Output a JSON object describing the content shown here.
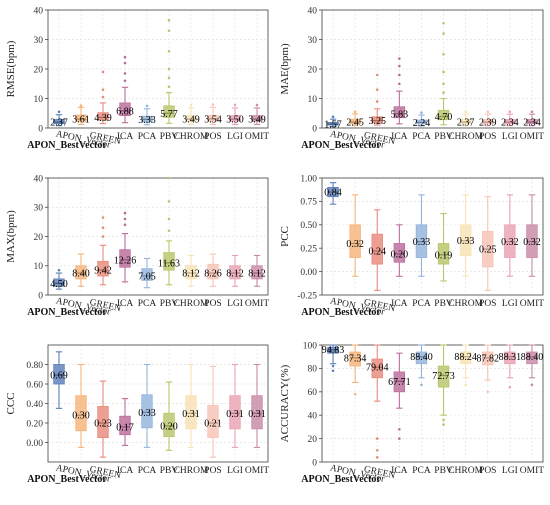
{
  "categories": [
    "APON_BestVector",
    "APON_Vector",
    "GREEN",
    "ICA",
    "PCA",
    "PBV",
    "CHROM",
    "POS",
    "LGI",
    "OMIT"
  ],
  "colors": [
    "#5b7fb8",
    "#f5b37a",
    "#e88a7a",
    "#bb6d9b",
    "#93b3dc",
    "#b9c568",
    "#f8e2b4",
    "#f7c3b6",
    "#eaa2b3",
    "#c88aa6"
  ],
  "chart_data": [
    {
      "type": "box",
      "title": "",
      "ylabel": "RMSE(bpm)",
      "ylim": [
        0,
        40
      ],
      "yticks": [
        0,
        10,
        20,
        30,
        40
      ],
      "grid": true,
      "means": [
        "2.37",
        "3.61",
        "4.39",
        "6.88",
        "3.33",
        "5.77",
        "3.49",
        "3.54",
        "3.50",
        "3.49"
      ],
      "boxes": [
        {
          "whisker_low": 0.8,
          "q1": 1.5,
          "median": 2.0,
          "q3": 2.9,
          "whisker_high": 4.5,
          "outliers": [
            5.5
          ]
        },
        {
          "whisker_low": 1.2,
          "q1": 2.3,
          "median": 3.0,
          "q3": 4.4,
          "whisker_high": 7.0,
          "outliers": [
            7.6
          ]
        },
        {
          "whisker_low": 1.5,
          "q1": 2.7,
          "median": 3.6,
          "q3": 5.2,
          "whisker_high": 8.5,
          "outliers": [
            10.5,
            13.0,
            19.0
          ]
        },
        {
          "whisker_low": 1.8,
          "q1": 4.2,
          "median": 5.8,
          "q3": 8.5,
          "whisker_high": 13.8,
          "outliers": [
            16.0,
            18.5,
            22.0,
            24.0
          ]
        },
        {
          "whisker_low": 1.1,
          "q1": 2.1,
          "median": 2.9,
          "q3": 4.0,
          "whisker_high": 6.5,
          "outliers": [
            7.5
          ]
        },
        {
          "whisker_low": 1.6,
          "q1": 3.6,
          "median": 5.0,
          "q3": 7.5,
          "whisker_high": 12.0,
          "outliers": [
            14.0,
            17.0,
            20.0,
            26.0,
            33.0,
            36.5
          ]
        },
        {
          "whisker_low": 1.2,
          "q1": 2.3,
          "median": 3.0,
          "q3": 4.2,
          "whisker_high": 6.8,
          "outliers": [
            7.8
          ]
        },
        {
          "whisker_low": 1.2,
          "q1": 2.4,
          "median": 3.1,
          "q3": 4.3,
          "whisker_high": 7.0,
          "outliers": [
            7.9
          ]
        },
        {
          "whisker_low": 1.2,
          "q1": 2.3,
          "median": 3.0,
          "q3": 4.2,
          "whisker_high": 6.8,
          "outliers": [
            7.8
          ]
        },
        {
          "whisker_low": 1.2,
          "q1": 2.3,
          "median": 3.0,
          "q3": 4.2,
          "whisker_high": 6.8,
          "outliers": [
            7.8
          ]
        }
      ]
    },
    {
      "type": "box",
      "title": "",
      "ylabel": "MAE(bpm)",
      "ylim": [
        0,
        40
      ],
      "yticks": [
        0,
        10,
        20,
        30,
        40
      ],
      "grid": true,
      "means": [
        "1.57",
        "2.45",
        "3.25",
        "5.83",
        "2.24",
        "4.70",
        "2.37",
        "2.39",
        "2.34",
        "2.34"
      ],
      "boxes": [
        {
          "whisker_low": 0.5,
          "q1": 1.0,
          "median": 1.3,
          "q3": 1.9,
          "whisker_high": 3.0,
          "outliers": [
            3.8
          ]
        },
        {
          "whisker_low": 0.8,
          "q1": 1.5,
          "median": 2.0,
          "q3": 3.0,
          "whisker_high": 4.8,
          "outliers": [
            5.5
          ]
        },
        {
          "whisker_low": 1.0,
          "q1": 1.8,
          "median": 2.5,
          "q3": 3.8,
          "whisker_high": 6.5,
          "outliers": [
            9.0,
            13.0,
            18.0
          ]
        },
        {
          "whisker_low": 1.4,
          "q1": 3.5,
          "median": 4.8,
          "q3": 7.2,
          "whisker_high": 12.5,
          "outliers": [
            15.0,
            18.0,
            21.0,
            23.5
          ]
        },
        {
          "whisker_low": 0.7,
          "q1": 1.4,
          "median": 1.9,
          "q3": 2.7,
          "whisker_high": 4.4,
          "outliers": [
            5.2
          ]
        },
        {
          "whisker_low": 1.1,
          "q1": 2.8,
          "median": 3.9,
          "q3": 6.0,
          "whisker_high": 10.0,
          "outliers": [
            12.0,
            15.0,
            19.0,
            25.0,
            32.0,
            35.5
          ]
        },
        {
          "whisker_low": 0.8,
          "q1": 1.5,
          "median": 2.0,
          "q3": 2.9,
          "whisker_high": 4.7,
          "outliers": [
            5.5
          ]
        },
        {
          "whisker_low": 0.8,
          "q1": 1.5,
          "median": 2.0,
          "q3": 2.9,
          "whisker_high": 4.7,
          "outliers": [
            5.5
          ]
        },
        {
          "whisker_low": 0.8,
          "q1": 1.5,
          "median": 2.0,
          "q3": 2.9,
          "whisker_high": 4.7,
          "outliers": [
            5.5
          ]
        },
        {
          "whisker_low": 0.8,
          "q1": 1.5,
          "median": 2.0,
          "q3": 2.9,
          "whisker_high": 4.7,
          "outliers": [
            5.5
          ]
        }
      ]
    },
    {
      "type": "box",
      "title": "",
      "ylabel": "MAX(bpm)",
      "ylim": [
        0,
        40
      ],
      "yticks": [
        0,
        10,
        20,
        30,
        40
      ],
      "grid": true,
      "means": [
        "4.50",
        "8.40",
        "9.42",
        "12.26",
        "7.05",
        "11.63",
        "8.12",
        "8.26",
        "8.12",
        "8.12"
      ],
      "boxes": [
        {
          "whisker_low": 2.0,
          "q1": 3.0,
          "median": 4.0,
          "q3": 5.5,
          "whisker_high": 7.5,
          "outliers": [
            8.5
          ]
        },
        {
          "whisker_low": 3.0,
          "q1": 5.5,
          "median": 7.5,
          "q3": 10.0,
          "whisker_high": 14.0,
          "outliers": []
        },
        {
          "whisker_low": 3.5,
          "q1": 6.5,
          "median": 8.5,
          "q3": 11.5,
          "whisker_high": 17.0,
          "outliers": [
            20.0,
            23.0,
            26.5
          ]
        },
        {
          "whisker_low": 4.5,
          "q1": 9.5,
          "median": 12.0,
          "q3": 15.5,
          "whisker_high": 21.0,
          "outliers": [
            24.0,
            26.0,
            28.0
          ]
        },
        {
          "whisker_low": 2.5,
          "q1": 5.0,
          "median": 6.5,
          "q3": 9.0,
          "whisker_high": 12.5,
          "outliers": []
        },
        {
          "whisker_low": 3.5,
          "q1": 8.5,
          "median": 11.0,
          "q3": 14.5,
          "whisker_high": 18.5,
          "outliers": [
            22.0,
            26.0,
            32.0,
            40.0
          ]
        },
        {
          "whisker_low": 3.0,
          "q1": 5.5,
          "median": 7.5,
          "q3": 10.0,
          "whisker_high": 13.5,
          "outliers": []
        },
        {
          "whisker_low": 3.0,
          "q1": 5.5,
          "median": 7.5,
          "q3": 10.5,
          "whisker_high": 14.0,
          "outliers": []
        },
        {
          "whisker_low": 3.0,
          "q1": 5.5,
          "median": 7.5,
          "q3": 10.0,
          "whisker_high": 13.5,
          "outliers": []
        },
        {
          "whisker_low": 3.0,
          "q1": 5.5,
          "median": 7.5,
          "q3": 10.0,
          "whisker_high": 13.5,
          "outliers": []
        }
      ]
    },
    {
      "type": "box",
      "title": "",
      "ylabel": "PCC",
      "ylim": [
        -0.25,
        1.0
      ],
      "yticks": [
        -0.25,
        0.0,
        0.25,
        0.5,
        0.75,
        1.0
      ],
      "grid": true,
      "means": [
        "0.84",
        "0.32",
        "0.24",
        "0.20",
        "0.33",
        "0.19",
        "0.33",
        "0.25",
        "0.32",
        "0.32"
      ],
      "boxes": [
        {
          "whisker_low": 0.72,
          "q1": 0.8,
          "median": 0.85,
          "q3": 0.9,
          "whisker_high": 0.95,
          "outliers": []
        },
        {
          "whisker_low": -0.05,
          "q1": 0.15,
          "median": 0.3,
          "q3": 0.5,
          "whisker_high": 0.82,
          "outliers": []
        },
        {
          "whisker_low": -0.2,
          "q1": 0.08,
          "median": 0.22,
          "q3": 0.4,
          "whisker_high": 0.66,
          "outliers": []
        },
        {
          "whisker_low": -0.05,
          "q1": 0.1,
          "median": 0.19,
          "q3": 0.3,
          "whisker_high": 0.5,
          "outliers": []
        },
        {
          "whisker_low": -0.05,
          "q1": 0.15,
          "median": 0.32,
          "q3": 0.5,
          "whisker_high": 0.82,
          "outliers": []
        },
        {
          "whisker_low": -0.1,
          "q1": 0.08,
          "median": 0.18,
          "q3": 0.3,
          "whisker_high": 0.62,
          "outliers": []
        },
        {
          "whisker_low": -0.05,
          "q1": 0.17,
          "median": 0.33,
          "q3": 0.5,
          "whisker_high": 0.82,
          "outliers": []
        },
        {
          "whisker_low": -0.2,
          "q1": 0.05,
          "median": 0.24,
          "q3": 0.43,
          "whisker_high": 0.8,
          "outliers": []
        },
        {
          "whisker_low": -0.05,
          "q1": 0.15,
          "median": 0.32,
          "q3": 0.5,
          "whisker_high": 0.82,
          "outliers": []
        },
        {
          "whisker_low": -0.05,
          "q1": 0.15,
          "median": 0.32,
          "q3": 0.5,
          "whisker_high": 0.82,
          "outliers": []
        }
      ]
    },
    {
      "type": "box",
      "title": "",
      "ylabel": "CCC",
      "ylim": [
        -0.2,
        1.0
      ],
      "yticks": [
        0.0,
        0.2,
        0.4,
        0.6,
        0.8
      ],
      "grid": true,
      "means": [
        "0.69",
        "0.30",
        "0.23",
        "0.17",
        "0.33",
        "0.20",
        "0.31",
        "0.21",
        "0.31",
        "0.31"
      ],
      "boxes": [
        {
          "whisker_low": 0.35,
          "q1": 0.6,
          "median": 0.69,
          "q3": 0.8,
          "whisker_high": 0.93,
          "outliers": []
        },
        {
          "whisker_low": -0.05,
          "q1": 0.12,
          "median": 0.28,
          "q3": 0.48,
          "whisker_high": 0.8,
          "outliers": []
        },
        {
          "whisker_low": -0.15,
          "q1": 0.05,
          "median": 0.2,
          "q3": 0.37,
          "whisker_high": 0.63,
          "outliers": []
        },
        {
          "whisker_low": -0.03,
          "q1": 0.08,
          "median": 0.16,
          "q3": 0.27,
          "whisker_high": 0.45,
          "outliers": []
        },
        {
          "whisker_low": -0.05,
          "q1": 0.15,
          "median": 0.31,
          "q3": 0.49,
          "whisker_high": 0.8,
          "outliers": []
        },
        {
          "whisker_low": -0.08,
          "q1": 0.06,
          "median": 0.17,
          "q3": 0.3,
          "whisker_high": 0.62,
          "outliers": []
        },
        {
          "whisker_low": -0.05,
          "q1": 0.14,
          "median": 0.3,
          "q3": 0.48,
          "whisker_high": 0.8,
          "outliers": []
        },
        {
          "whisker_low": -0.15,
          "q1": 0.05,
          "median": 0.2,
          "q3": 0.38,
          "whisker_high": 0.78,
          "outliers": []
        },
        {
          "whisker_low": -0.05,
          "q1": 0.14,
          "median": 0.3,
          "q3": 0.48,
          "whisker_high": 0.8,
          "outliers": []
        },
        {
          "whisker_low": -0.05,
          "q1": 0.14,
          "median": 0.3,
          "q3": 0.48,
          "whisker_high": 0.8,
          "outliers": []
        }
      ]
    },
    {
      "type": "box",
      "title": "",
      "ylabel": "ACCURACY(%)",
      "ylim": [
        0,
        100
      ],
      "yticks": [
        0,
        20,
        40,
        60,
        80,
        100
      ],
      "grid": true,
      "means": [
        "94.83",
        "87.34",
        "79.04",
        "67.71",
        "88.40",
        "72.73",
        "88.24",
        "87.82",
        "88.31",
        "88.40"
      ],
      "boxes": [
        {
          "whisker_low": 84,
          "q1": 93,
          "median": 96,
          "q3": 98,
          "whisker_high": 100,
          "outliers": [
            78,
            82
          ]
        },
        {
          "whisker_low": 68,
          "q1": 82,
          "median": 89,
          "q3": 94,
          "whisker_high": 100,
          "outliers": [
            58
          ]
        },
        {
          "whisker_low": 52,
          "q1": 72,
          "median": 81,
          "q3": 88,
          "whisker_high": 100,
          "outliers": [
            4,
            10,
            20
          ]
        },
        {
          "whisker_low": 46,
          "q1": 60,
          "median": 69,
          "q3": 77,
          "whisker_high": 93,
          "outliers": [
            20,
            28
          ]
        },
        {
          "whisker_low": 72,
          "q1": 84,
          "median": 90,
          "q3": 94,
          "whisker_high": 100,
          "outliers": [
            66
          ]
        },
        {
          "whisker_low": 40,
          "q1": 64,
          "median": 74,
          "q3": 82,
          "whisker_high": 100,
          "outliers": [
            32,
            36
          ]
        },
        {
          "whisker_low": 72,
          "q1": 84,
          "median": 90,
          "q3": 94,
          "whisker_high": 100,
          "outliers": [
            66
          ]
        },
        {
          "whisker_low": 70,
          "q1": 83,
          "median": 89,
          "q3": 94,
          "whisker_high": 100,
          "outliers": [
            60
          ]
        },
        {
          "whisker_low": 72,
          "q1": 84,
          "median": 90,
          "q3": 94,
          "whisker_high": 100,
          "outliers": [
            64
          ]
        },
        {
          "whisker_low": 72,
          "q1": 84,
          "median": 90,
          "q3": 94,
          "whisker_high": 100,
          "outliers": [
            66
          ]
        }
      ]
    }
  ]
}
